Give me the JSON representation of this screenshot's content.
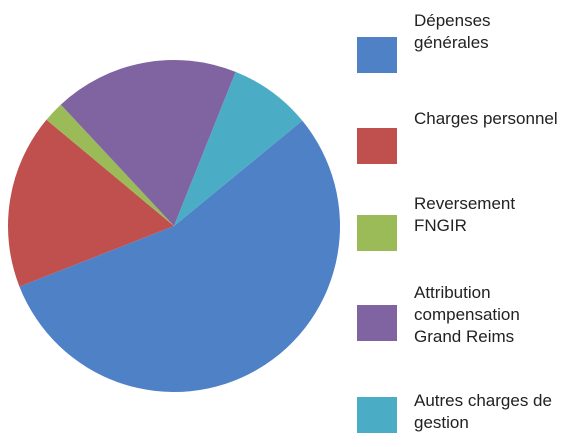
{
  "chart_data": {
    "type": "pie",
    "categories": [
      "Dépenses générales",
      "Charges personnel",
      "Reversement FNGIR",
      "Attribution compensation Grand Reims",
      "Autres charges de gestion"
    ],
    "values": [
      55,
      17,
      2,
      18,
      8
    ],
    "colors": [
      "#4f81c6",
      "#c0504d",
      "#9bbb59",
      "#8064a2",
      "#4bacc6"
    ]
  }
}
